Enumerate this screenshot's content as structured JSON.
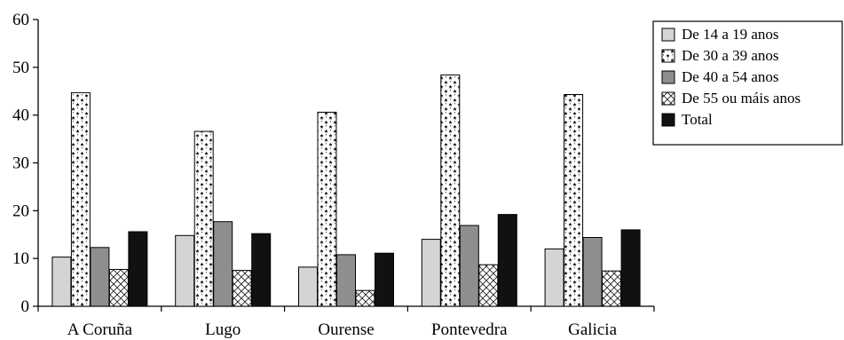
{
  "chart_data": {
    "type": "bar",
    "categories": [
      "A Coruña",
      "Lugo",
      "Ourense",
      "Pontevedra",
      "Galicia"
    ],
    "series": [
      {
        "name": "De 14 a 19 anos",
        "values": [
          10.3,
          14.8,
          8.2,
          14.0,
          12.0
        ],
        "pattern": "light-gray"
      },
      {
        "name": "De 30 a 39 anos",
        "values": [
          44.7,
          36.6,
          40.6,
          48.4,
          44.3
        ],
        "pattern": "stars"
      },
      {
        "name": "De 40 a 54 anos",
        "values": [
          12.3,
          17.7,
          10.8,
          16.9,
          14.4
        ],
        "pattern": "mid-gray"
      },
      {
        "name": "De 55 ou máis anos",
        "values": [
          7.7,
          7.5,
          3.3,
          8.7,
          7.4
        ],
        "pattern": "crosshatch"
      },
      {
        "name": "Total",
        "values": [
          15.6,
          15.2,
          11.1,
          19.2,
          16.0
        ],
        "pattern": "black"
      }
    ],
    "yticks": [
      0,
      10,
      20,
      30,
      40,
      50,
      60
    ],
    "ylim": [
      0,
      60
    ],
    "xlabel": "",
    "ylabel": "",
    "grid": false,
    "legend": "right",
    "colors": {
      "light-gray": "#d4d4d4",
      "mid-gray": "#8e8e8e",
      "black": "#111111"
    }
  }
}
